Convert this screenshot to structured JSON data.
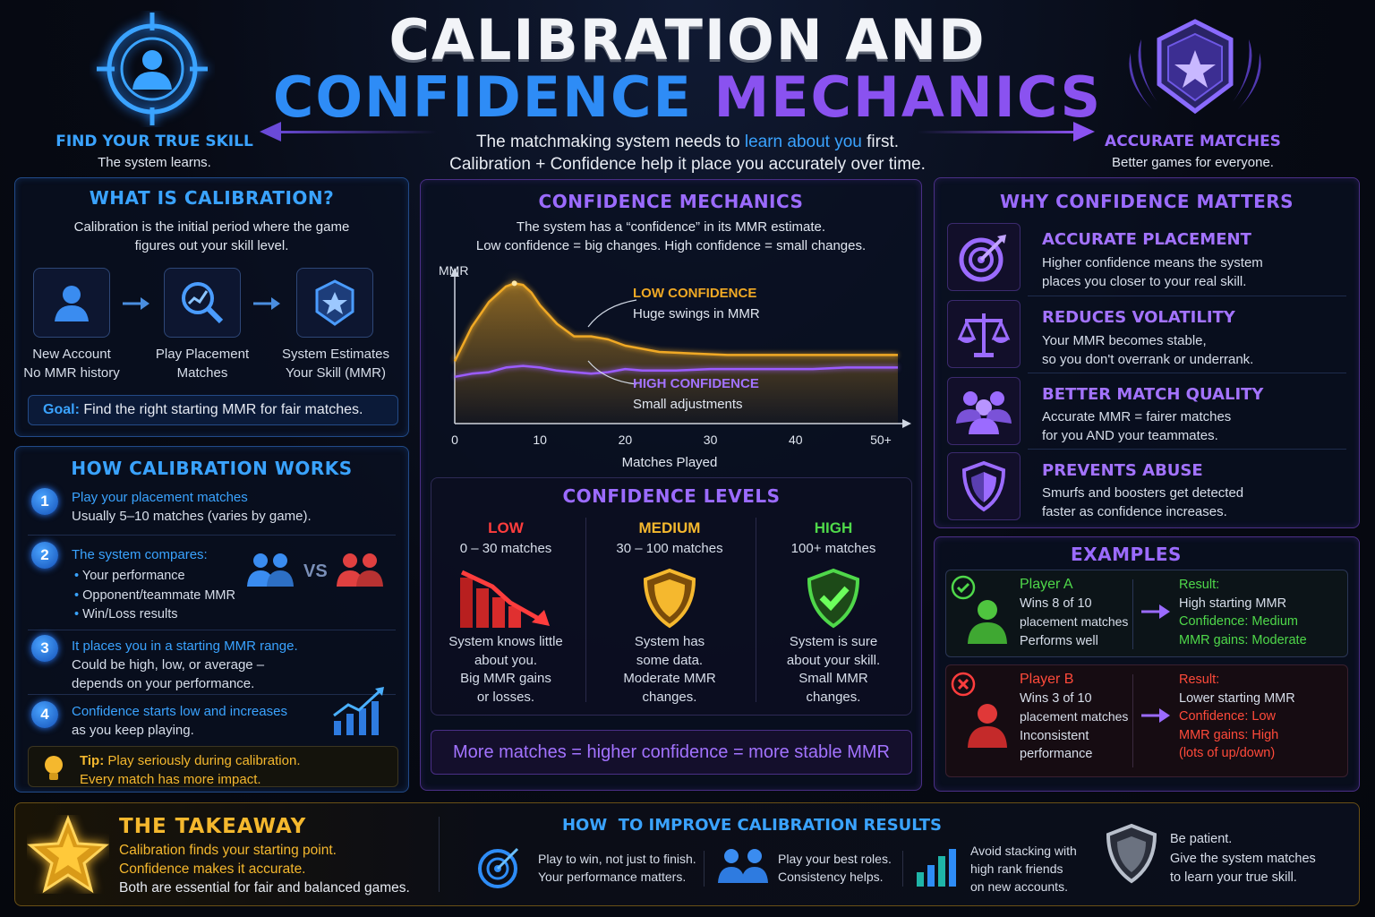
{
  "header": {
    "title_line1": "CALIBRATION AND",
    "title_line2_a": "CONFIDENCE",
    "title_line2_b": "MECHANICS",
    "subtitle_pre": "The matchmaking system needs to",
    "subtitle_highlight": "learn about you",
    "subtitle_post": "first.",
    "subtitle_line2": "Calibration + Confidence help it place you accurately over time.",
    "left_badge_title": "FIND YOUR TRUE SKILL",
    "left_badge_sub": "The system learns.",
    "right_badge_title": "ACCURATE MATCHES",
    "right_badge_sub": "Better games for everyone."
  },
  "what_is": {
    "title": "WHAT IS CALIBRATION?",
    "desc_line1": "Calibration is the initial period where the game",
    "desc_line2": "figures out your skill level.",
    "steps": [
      {
        "l1": "New Account",
        "l2": "No MMR history"
      },
      {
        "l1": "Play Placement",
        "l2": "Matches"
      },
      {
        "l1": "System Estimates",
        "l2": "Your Skill (MMR)"
      }
    ],
    "goal_label": "Goal:",
    "goal_text": "Find the right starting MMR for fair matches."
  },
  "how_works": {
    "title": "HOW CALIBRATION WORKS",
    "items": [
      {
        "n": "1",
        "head": "Play your placement matches",
        "body": "Usually 5–10 matches (varies by game)."
      },
      {
        "n": "2",
        "head": "The system compares:",
        "bullets": [
          "Your performance",
          "Opponent/teammate MMR",
          "Win/Loss results"
        ],
        "vs": "VS"
      },
      {
        "n": "3",
        "head": "It places you in a starting MMR range.",
        "body": "Could be high, low, or average –",
        "body2": "depends on your performance."
      },
      {
        "n": "4",
        "head": "Confidence starts low and increases",
        "body": "as you keep playing."
      }
    ],
    "tip_label": "Tip:",
    "tip_text": "Play seriously during calibration.",
    "tip_text2": "Every match has more impact."
  },
  "confidence": {
    "title": "CONFIDENCE MECHANICS",
    "desc_pre": "The system has a",
    "desc_quote": "“confidence”",
    "desc_post": "in its MMR estimate.",
    "desc_line2": "Low confidence = big changes. High confidence = small changes.",
    "low_label": "LOW CONFIDENCE",
    "low_sub": "Huge swings in MMR",
    "high_label": "HIGH CONFIDENCE",
    "high_sub": "Small adjustments"
  },
  "chart_data": {
    "type": "line",
    "ylabel": "MMR",
    "xlabel": "Matches Played",
    "x_ticks": [
      "0",
      "10",
      "20",
      "30",
      "40",
      "50+"
    ],
    "xlim": [
      0,
      52
    ],
    "ylim": [
      0,
      100
    ],
    "series": [
      {
        "name": "LOW CONFIDENCE",
        "color": "#f0a925",
        "x": [
          0,
          2,
          4,
          6,
          7,
          8,
          9,
          10,
          12,
          14,
          16,
          18,
          20,
          24,
          28,
          32,
          36,
          40,
          45,
          50,
          52
        ],
        "y": [
          40,
          62,
          78,
          88,
          90,
          89,
          84,
          76,
          64,
          56,
          56,
          54,
          50,
          46,
          45,
          44,
          44,
          44,
          44,
          44,
          44
        ]
      },
      {
        "name": "HIGH CONFIDENCE",
        "color": "#9b5cff",
        "x": [
          0,
          2,
          4,
          6,
          8,
          10,
          12,
          14,
          16,
          18,
          20,
          22,
          26,
          30,
          34,
          38,
          42,
          46,
          50,
          52
        ],
        "y": [
          30,
          32,
          33,
          36,
          37,
          36,
          34,
          33,
          32,
          33,
          35,
          34,
          34,
          35,
          35,
          35,
          35,
          36,
          36,
          36
        ]
      }
    ]
  },
  "levels": {
    "title": "CONFIDENCE LEVELS",
    "items": [
      {
        "name": "LOW",
        "range": "0 – 30 matches",
        "d1": "System knows little",
        "d2": "about you.",
        "d3": "Big MMR gains",
        "d4": "or losses.",
        "color": "#ff3d3d"
      },
      {
        "name": "MEDIUM",
        "range": "30 – 100 matches",
        "d1": "System has",
        "d2": "some data.",
        "d3": "Moderate MMR",
        "d4": "changes.",
        "color": "#f5b82e"
      },
      {
        "name": "HIGH",
        "range": "100+ matches",
        "d1": "System is sure",
        "d2": "about your skill.",
        "d3": "Small MMR",
        "d4": "changes.",
        "color": "#4fd84a"
      }
    ],
    "banner": "More matches = higher confidence = more stable MMR"
  },
  "why": {
    "title": "WHY CONFIDENCE MATTERS",
    "items": [
      {
        "head": "ACCURATE PLACEMENT",
        "l1": "Higher confidence means the system",
        "l2": "places you closer to your real skill.",
        "icon": "target-icon"
      },
      {
        "head": "REDUCES VOLATILITY",
        "l1": "Your MMR becomes stable,",
        "l2": "so you don't overrank or underrank.",
        "icon": "scale-icon"
      },
      {
        "head": "BETTER MATCH QUALITY",
        "l1": "Accurate MMR = fairer matches",
        "l2": "for you AND your teammates.",
        "icon": "group-icon"
      },
      {
        "head": "PREVENTS ABUSE",
        "l1": "Smurfs and boosters get detected",
        "l2": "faster as confidence increases.",
        "icon": "shield-icon"
      }
    ]
  },
  "examples": {
    "title": "EXAMPLES",
    "a": {
      "name": "Player A",
      "l1": "Wins 8 of 10",
      "l2": "placement matches",
      "l3": "Performs well",
      "result": "Result:",
      "r1": "High starting MMR",
      "r2": "Confidence: Medium",
      "r3": "MMR gains: Moderate"
    },
    "b": {
      "name": "Player B",
      "l1": "Wins 3 of 10",
      "l2": "placement matches",
      "l3": "Inconsistent",
      "l4": "performance",
      "result": "Result:",
      "r1": "Lower starting MMR",
      "r2": "Confidence: Low",
      "r3": "MMR gains: High",
      "r4": "(lots of up/down)"
    }
  },
  "takeaway": {
    "title": "THE TAKEAWAY",
    "l1": "Calibration finds your starting point.",
    "l2": "Confidence makes it accurate.",
    "l3": "Both are essential for fair and balanced games."
  },
  "improve": {
    "title": "HOW  TO IMPROVE CALIBRATION RESULTS",
    "tips": [
      {
        "l1": "Play to win, not just to finish.",
        "l2": "Your performance matters."
      },
      {
        "l1": "Play your best roles.",
        "l2": "Consistency helps."
      },
      {
        "l1": "Avoid stacking with",
        "l2": "high rank friends",
        "l3": "on new accounts."
      },
      {
        "l1": "Be patient.",
        "l2": "Give the system matches",
        "l3": "to learn your true skill."
      }
    ]
  }
}
